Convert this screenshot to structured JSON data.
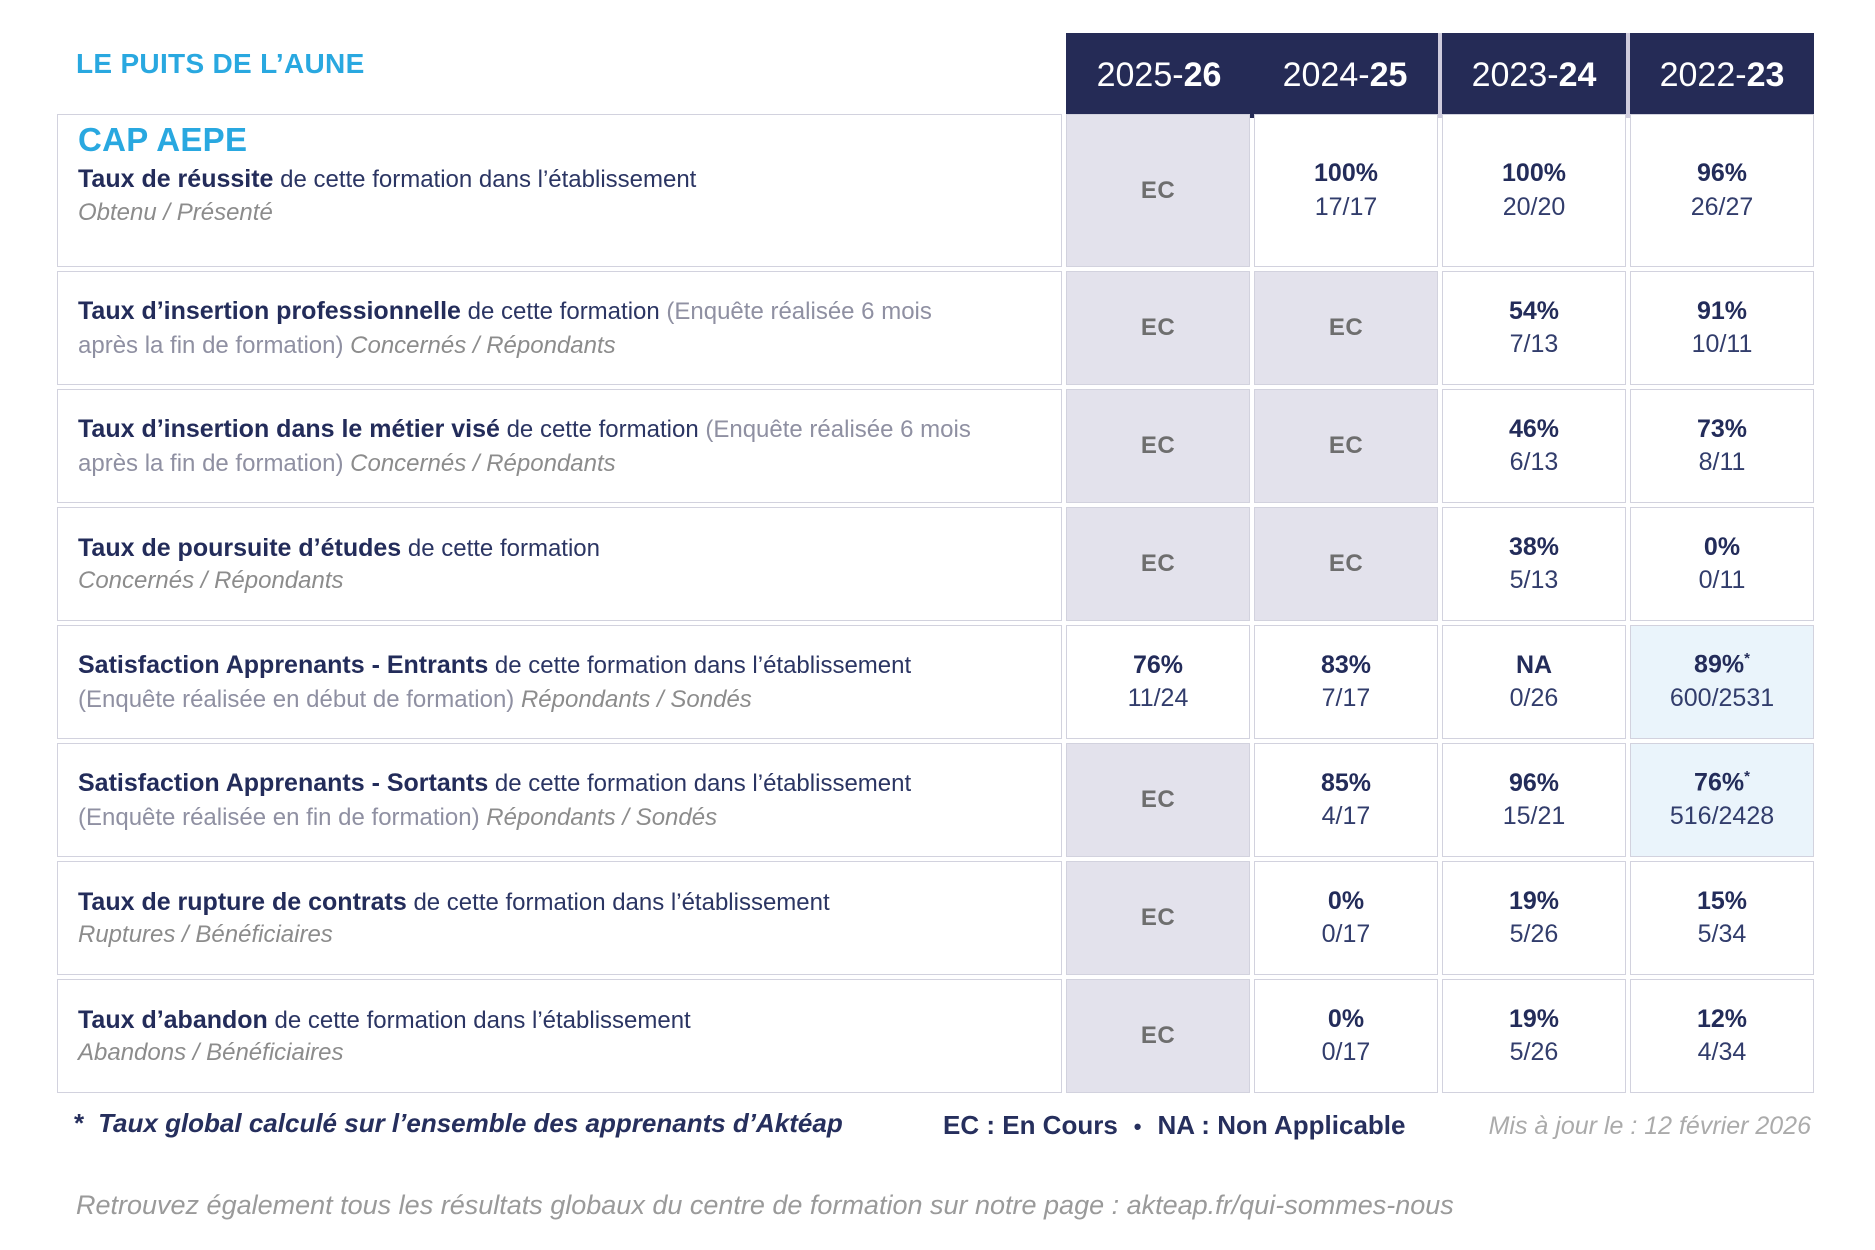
{
  "header": {
    "org_title": "LE PUITS DE L’AUNE",
    "years": [
      {
        "base": "2025-",
        "bold": "26"
      },
      {
        "base": "2024-",
        "bold": "25"
      },
      {
        "base": "2023-",
        "bold": "24"
      },
      {
        "base": "2022-",
        "bold": "23"
      }
    ]
  },
  "table": {
    "course_title": "CAP AEPE",
    "ec_label": "EC",
    "star_symbol": "*",
    "rows": [
      {
        "title": "Taux de réussite",
        "desc": "de cette formation dans l’établissement",
        "paren": "",
        "sub": "Obtenu / Présenté",
        "sub_newline": true,
        "values": [
          {
            "ec": true
          },
          {
            "pct": "100%",
            "frac": "17/17"
          },
          {
            "pct": "100%",
            "frac": "20/20"
          },
          {
            "pct": "96%",
            "frac": "26/27"
          }
        ]
      },
      {
        "title": "Taux d’insertion professionnelle",
        "desc": "de cette formation",
        "paren": "(Enquête réalisée 6 mois après la fin de formation)",
        "sub": "Concernés / Répondants",
        "sub_newline": false,
        "values": [
          {
            "ec": true
          },
          {
            "ec": true
          },
          {
            "pct": "54%",
            "frac": "7/13"
          },
          {
            "pct": "91%",
            "frac": "10/11"
          }
        ]
      },
      {
        "title": "Taux d’insertion dans le métier visé",
        "desc": "de cette formation",
        "paren": "(Enquête réalisée 6 mois après la fin de formation)",
        "sub": "Concernés / Répondants",
        "sub_newline": false,
        "values": [
          {
            "ec": true
          },
          {
            "ec": true
          },
          {
            "pct": "46%",
            "frac": "6/13"
          },
          {
            "pct": "73%",
            "frac": "8/11"
          }
        ]
      },
      {
        "title": "Taux de poursuite d’études",
        "desc": "de cette formation",
        "paren": "",
        "sub": "Concernés / Répondants",
        "sub_newline": true,
        "values": [
          {
            "ec": true
          },
          {
            "ec": true
          },
          {
            "pct": "38%",
            "frac": "5/13"
          },
          {
            "pct": "0%",
            "frac": "0/11"
          }
        ]
      },
      {
        "title": "Satisfaction Apprenants - Entrants",
        "desc": "de cette formation dans l’établissement",
        "paren": "(Enquête réalisée en début de formation)",
        "sub": "Répondants / Sondés",
        "sub_newline": false,
        "values": [
          {
            "pct": "76%",
            "frac": "11/24"
          },
          {
            "pct": "83%",
            "frac": "7/17"
          },
          {
            "pct": "NA",
            "frac": "0/26"
          },
          {
            "pct": "89%",
            "frac": "600/2531",
            "star": true,
            "highlight": true
          }
        ]
      },
      {
        "title": "Satisfaction Apprenants - Sortants",
        "desc": "de cette formation dans l’établissement",
        "paren": "(Enquête réalisée en fin de formation)",
        "sub": "Répondants / Sondés",
        "sub_newline": false,
        "values": [
          {
            "ec": true
          },
          {
            "pct": "85%",
            "frac": "4/17"
          },
          {
            "pct": "96%",
            "frac": "15/21"
          },
          {
            "pct": "76%",
            "frac": "516/2428",
            "star": true,
            "highlight": true
          }
        ]
      },
      {
        "title": "Taux de rupture de contrats",
        "desc": "de cette formation dans l’établissement",
        "paren": "",
        "sub": "Ruptures / Bénéficiaires",
        "sub_newline": true,
        "values": [
          {
            "ec": true
          },
          {
            "pct": "0%",
            "frac": "0/17"
          },
          {
            "pct": "19%",
            "frac": "5/26"
          },
          {
            "pct": "15%",
            "frac": "5/34"
          }
        ]
      },
      {
        "title": "Taux d’abandon",
        "desc": "de cette formation dans l’établissement",
        "paren": "",
        "sub": "Abandons / Bénéficiaires",
        "sub_newline": true,
        "values": [
          {
            "ec": true
          },
          {
            "pct": "0%",
            "frac": "0/17"
          },
          {
            "pct": "19%",
            "frac": "5/26"
          },
          {
            "pct": "12%",
            "frac": "4/34"
          }
        ]
      }
    ]
  },
  "footer": {
    "note_star": "*",
    "note_text": "Taux global calculé sur l’ensemble des apprenants d’Aktéap",
    "legend_ec": "EC : En Cours",
    "legend_sep": "•",
    "legend_na": "NA : Non Applicable",
    "updated": "Mis à jour le : 12 février 2026",
    "more_prefix": "Retrouvez également tous les résultats globaux du centre de formation sur notre page : ",
    "more_url": "akteap.fr/qui-sommes-nous"
  },
  "colors": {
    "accent_blue": "#29A8E0",
    "navy": "#252B56",
    "ec_background": "#E3E2EC",
    "highlight_background": "#EAF4FB",
    "muted_gray": "#8C8C8C"
  }
}
